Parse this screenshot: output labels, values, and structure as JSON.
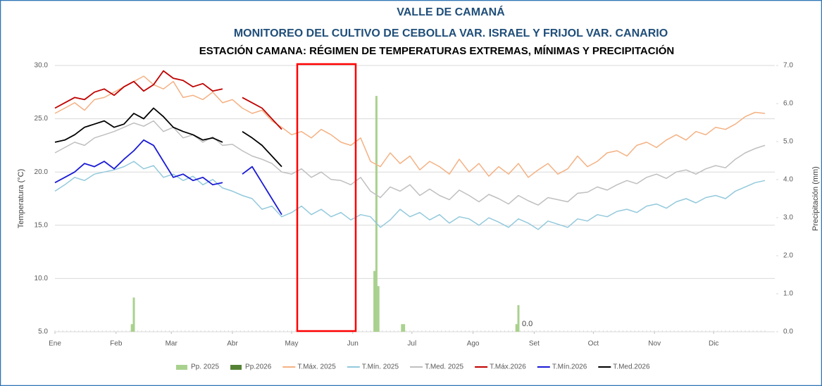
{
  "chart_data": {
    "type": "line",
    "title": "VALLE DE CAMANÁ",
    "subtitle": "MONITOREO DEL CULTIVO DE CEBOLLA VAR. ISRAEL Y FRIJOL VAR. CANARIO",
    "subtitle2": "ESTACIÓN CAMANA: RÉGIMEN DE TEMPERATURAS EXTREMAS, MÍNIMAS Y PRECIPITACIÓN",
    "ylabel": "Temperatura (°C)",
    "y2label": "Precipitación (mm)",
    "annotation": "0.0",
    "grid": true,
    "legend": "bottom",
    "xlim": [
      0,
      365
    ],
    "xticks": [
      {
        "value": 0,
        "label": "Ene"
      },
      {
        "value": 31,
        "label": "Feb"
      },
      {
        "value": 59,
        "label": "Mar"
      },
      {
        "value": 90,
        "label": "Abr"
      },
      {
        "value": 120,
        "label": "May"
      },
      {
        "value": 151,
        "label": "Jun"
      },
      {
        "value": 181,
        "label": "Jul"
      },
      {
        "value": 212,
        "label": "Ago"
      },
      {
        "value": 243,
        "label": "Set"
      },
      {
        "value": 273,
        "label": "Oct"
      },
      {
        "value": 304,
        "label": "Nov"
      },
      {
        "value": 334,
        "label": "Dic"
      }
    ],
    "ylim": [
      5,
      30
    ],
    "yticks": [
      {
        "value": 5,
        "label": "5.0"
      },
      {
        "value": 10,
        "label": "10.0"
      },
      {
        "value": 15,
        "label": "15.0"
      },
      {
        "value": 20,
        "label": "20.0"
      },
      {
        "value": 25,
        "label": "25.0"
      },
      {
        "value": 30,
        "label": "30.0"
      }
    ],
    "y2lim": [
      0,
      7
    ],
    "y2ticks": [
      {
        "value": 0,
        "label": "0.0"
      },
      {
        "value": 1,
        "label": "1.0"
      },
      {
        "value": 2,
        "label": "2.0"
      },
      {
        "value": 3,
        "label": "3.0"
      },
      {
        "value": 4,
        "label": "4.0"
      },
      {
        "value": 5,
        "label": "5.0"
      },
      {
        "value": 6,
        "label": "6.0"
      },
      {
        "value": 7,
        "label": "7.0"
      }
    ],
    "series": [
      {
        "name": "Pp. 2025",
        "type": "bar",
        "axis": "y2",
        "color": "#a9d18e",
        "x": [
          39,
          40,
          162,
          163,
          164,
          176,
          177,
          234,
          235
        ],
        "values": [
          0.2,
          0.9,
          1.6,
          6.2,
          1.2,
          0.2,
          0.2,
          0.2,
          0.7
        ]
      },
      {
        "name": "Pp.2026",
        "type": "bar",
        "axis": "y2",
        "color": "#548235",
        "x": [],
        "values": []
      },
      {
        "name": "T.Máx. 2025",
        "color": "#f4b183",
        "x": [
          0,
          5,
          10,
          15,
          20,
          25,
          30,
          35,
          40,
          45,
          50,
          55,
          60,
          65,
          70,
          75,
          80,
          85,
          90,
          95,
          100,
          105,
          110,
          115,
          120,
          125,
          130,
          135,
          140,
          145,
          150,
          155,
          160,
          165,
          170,
          175,
          180,
          185,
          190,
          195,
          200,
          205,
          210,
          215,
          220,
          225,
          230,
          235,
          240,
          245,
          250,
          255,
          260,
          265,
          270,
          275,
          280,
          285,
          290,
          295,
          300,
          305,
          310,
          315,
          320,
          325,
          330,
          335,
          340,
          345,
          350,
          355,
          360
        ],
        "values": [
          25.5,
          26,
          26.5,
          25.8,
          26.8,
          27,
          27.5,
          28,
          28.5,
          29,
          28.2,
          27.8,
          28.5,
          27,
          27.2,
          26.8,
          27.5,
          26.5,
          26.8,
          26,
          25.5,
          25.8,
          24.8,
          24.2,
          23.5,
          23.8,
          23.2,
          24,
          23.5,
          22.8,
          22.5,
          23.2,
          21,
          20.5,
          21.8,
          20.8,
          21.5,
          20.2,
          21,
          20.5,
          19.8,
          21.2,
          20,
          20.8,
          19.6,
          20.5,
          19.8,
          20.8,
          19.5,
          20.2,
          20.8,
          19.8,
          20.3,
          21.5,
          20.5,
          21,
          21.8,
          22,
          21.5,
          22.5,
          22.8,
          22.3,
          23,
          23.5,
          23,
          23.8,
          23.5,
          24.2,
          24,
          24.5,
          25.2,
          25.6,
          25.5
        ]
      },
      {
        "name": "T.Mín. 2025",
        "color": "#93c9dc",
        "x": [
          0,
          5,
          10,
          15,
          20,
          25,
          30,
          35,
          40,
          45,
          50,
          55,
          60,
          65,
          70,
          75,
          80,
          85,
          90,
          95,
          100,
          105,
          110,
          115,
          120,
          125,
          130,
          135,
          140,
          145,
          150,
          155,
          160,
          165,
          170,
          175,
          180,
          185,
          190,
          195,
          200,
          205,
          210,
          215,
          220,
          225,
          230,
          235,
          240,
          245,
          250,
          255,
          260,
          265,
          270,
          275,
          280,
          285,
          290,
          295,
          300,
          305,
          310,
          315,
          320,
          325,
          330,
          335,
          340,
          345,
          350,
          355,
          360
        ],
        "values": [
          18.2,
          18.8,
          19.5,
          19.2,
          19.8,
          20,
          20.2,
          20.5,
          21,
          20.3,
          20.6,
          19.5,
          19.8,
          19.2,
          19.6,
          18.8,
          19.3,
          18.5,
          18.2,
          17.8,
          17.5,
          16.5,
          16.8,
          15.8,
          16.2,
          16.8,
          16,
          16.5,
          15.8,
          16.2,
          15.5,
          16,
          15.8,
          14.8,
          15.5,
          16.5,
          15.8,
          16.2,
          15.5,
          16,
          15.2,
          15.8,
          15.6,
          15,
          15.7,
          15.3,
          14.8,
          15.6,
          15.2,
          14.6,
          15.4,
          15.1,
          14.8,
          15.6,
          15.4,
          16,
          15.8,
          16.3,
          16.5,
          16.2,
          16.8,
          17,
          16.6,
          17.2,
          17.5,
          17.1,
          17.6,
          17.8,
          17.5,
          18.2,
          18.6,
          19,
          19.2
        ]
      },
      {
        "name": "T.Med. 2025",
        "color": "#bfbfbf",
        "x": [
          0,
          5,
          10,
          15,
          20,
          25,
          30,
          35,
          40,
          45,
          50,
          55,
          60,
          65,
          70,
          75,
          80,
          85,
          90,
          95,
          100,
          105,
          110,
          115,
          120,
          125,
          130,
          135,
          140,
          145,
          150,
          155,
          160,
          165,
          170,
          175,
          180,
          185,
          190,
          195,
          200,
          205,
          210,
          215,
          220,
          225,
          230,
          235,
          240,
          245,
          250,
          255,
          260,
          265,
          270,
          275,
          280,
          285,
          290,
          295,
          300,
          305,
          310,
          315,
          320,
          325,
          330,
          335,
          340,
          345,
          350,
          355,
          360
        ],
        "values": [
          21.8,
          22.3,
          22.8,
          22.5,
          23.2,
          23.5,
          23.8,
          24.2,
          24.6,
          24.3,
          24.8,
          23.8,
          24.2,
          23.2,
          23.5,
          22.8,
          23.3,
          22.5,
          22.6,
          22,
          21.5,
          21.2,
          20.8,
          20,
          19.8,
          20.3,
          19.5,
          20,
          19.3,
          19.2,
          18.8,
          19.5,
          18.2,
          17.6,
          18.6,
          18.2,
          18.8,
          17.8,
          18.4,
          17.8,
          17.4,
          18.3,
          17.8,
          17.2,
          17.9,
          17.5,
          17,
          17.8,
          17.3,
          16.9,
          17.6,
          17.4,
          17.2,
          18,
          18.1,
          18.6,
          18.3,
          18.8,
          19.2,
          18.9,
          19.5,
          19.8,
          19.4,
          20,
          20.2,
          19.8,
          20.3,
          20.6,
          20.4,
          21.2,
          21.8,
          22.2,
          22.5
        ]
      },
      {
        "name": "T.Máx.2026",
        "color": "#c00000",
        "x": [
          0,
          5,
          10,
          15,
          20,
          25,
          30,
          35,
          40,
          45,
          50,
          55,
          60,
          65,
          70,
          75,
          80,
          85,
          90,
          95,
          100,
          105,
          110,
          115
        ],
        "values": [
          26,
          26.5,
          27,
          26.8,
          27.5,
          27.8,
          27.2,
          28,
          28.5,
          27.6,
          28.2,
          29.5,
          28.8,
          28.6,
          28,
          28.3,
          27.6,
          27.8,
          null,
          27,
          26.5,
          26,
          25,
          24
        ]
      },
      {
        "name": "T.Mín.2026",
        "color": "#1a1ad6",
        "x": [
          0,
          5,
          10,
          15,
          20,
          25,
          30,
          35,
          40,
          45,
          50,
          55,
          60,
          65,
          70,
          75,
          80,
          85,
          90,
          95,
          100,
          105,
          110,
          115
        ],
        "values": [
          19,
          19.5,
          20,
          20.8,
          20.5,
          21,
          20.3,
          21.2,
          22,
          23,
          22.5,
          21,
          19.5,
          19.8,
          19.2,
          19.5,
          18.8,
          19,
          null,
          19.8,
          20.5,
          19,
          17.5,
          16
        ]
      },
      {
        "name": "T.Med.2026",
        "color": "#000000",
        "x": [
          0,
          5,
          10,
          15,
          20,
          25,
          30,
          35,
          40,
          45,
          50,
          55,
          60,
          65,
          70,
          75,
          80,
          85,
          90,
          95,
          100,
          105,
          110,
          115
        ],
        "values": [
          22.8,
          23,
          23.5,
          24.2,
          24.5,
          24.8,
          24.2,
          24.5,
          25.5,
          25,
          26,
          25.2,
          24.2,
          23.8,
          23.5,
          23,
          23.2,
          22.8,
          null,
          23.8,
          23.2,
          22.5,
          21.5,
          20.5
        ]
      }
    ]
  }
}
